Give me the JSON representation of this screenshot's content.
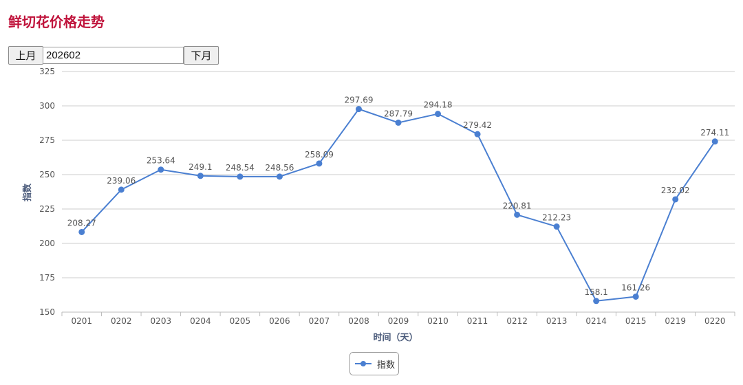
{
  "page": {
    "title": "鲜切花价格走势"
  },
  "controls": {
    "prev_label": "上月",
    "next_label": "下月",
    "month_value": "202602"
  },
  "colors": {
    "title": "#c0143c",
    "series": "#4a7fd1",
    "grid": "#cccccc",
    "axis_text": "#555555",
    "axis_title": "#4a5a7a"
  },
  "chart_data": {
    "type": "line",
    "xlabel": "时间（天）",
    "ylabel": "指数",
    "ylim": [
      150,
      325
    ],
    "yticks": [
      150,
      175,
      200,
      225,
      250,
      275,
      300,
      325
    ],
    "grid": true,
    "legend_position": "bottom-center",
    "categories": [
      "0201",
      "0202",
      "0203",
      "0204",
      "0205",
      "0206",
      "0207",
      "0208",
      "0209",
      "0210",
      "0211",
      "0212",
      "0213",
      "0214",
      "0215",
      "0219",
      "0220"
    ],
    "series": [
      {
        "name": "指数",
        "values": [
          208.27,
          239.06,
          253.64,
          249.1,
          248.54,
          248.56,
          258.09,
          297.69,
          287.79,
          294.18,
          279.42,
          220.81,
          212.23,
          158.1,
          161.26,
          232.02,
          274.11
        ],
        "labels": [
          "208.27",
          "239.06",
          "253.64",
          "249.1",
          "248.54",
          "248.56",
          "258.09",
          "297.69",
          "287.79",
          "294.18",
          "279.42",
          "220.81",
          "212.23",
          "158.1",
          "161.26",
          "232.02",
          "274.11"
        ]
      }
    ]
  }
}
